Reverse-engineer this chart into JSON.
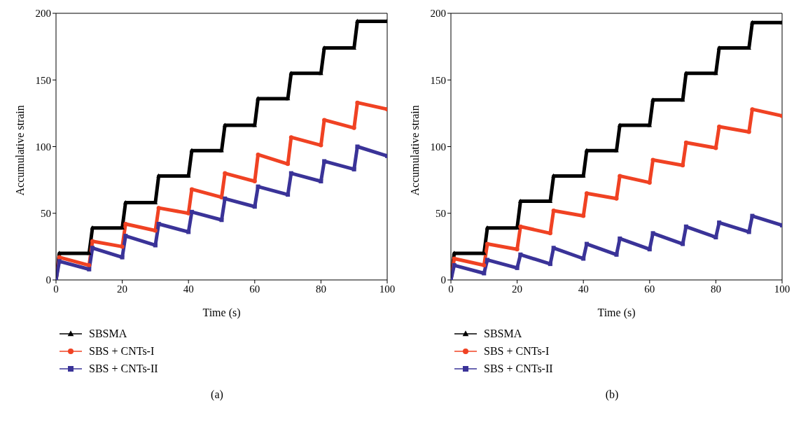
{
  "chart_data": [
    {
      "type": "line",
      "xlabel": "Time (s)",
      "ylabel": "Accumulative strain",
      "xlim": [
        0,
        100
      ],
      "xticks": [
        0,
        20,
        40,
        60,
        80,
        100
      ],
      "ylim": [
        0,
        200
      ],
      "yticks": [
        0,
        50,
        100,
        150,
        200
      ],
      "grid": false,
      "legend": "bottom",
      "line_style": "solid",
      "annotations": [
        "(a)"
      ],
      "series": [
        {
          "name": "SBSMA",
          "color": "#000000",
          "marker": "triangle",
          "x": [
            0,
            1,
            10,
            11,
            20,
            21,
            30,
            31,
            40,
            41,
            50,
            51,
            60,
            61,
            70,
            71,
            80,
            81,
            90,
            91,
            100
          ],
          "values": [
            0,
            20,
            20,
            39,
            39,
            58,
            58,
            78,
            78,
            97,
            97,
            116,
            116,
            136,
            136,
            155,
            155,
            174,
            174,
            194,
            194
          ]
        },
        {
          "name": "SBS + CNTs-I",
          "color": "#f04223",
          "marker": "circle",
          "x": [
            0,
            1,
            10,
            11,
            20,
            21,
            30,
            31,
            40,
            41,
            50,
            51,
            60,
            61,
            70,
            71,
            80,
            81,
            90,
            91,
            100
          ],
          "values": [
            0,
            17,
            11,
            29,
            25,
            42,
            37,
            54,
            50,
            68,
            62,
            80,
            74,
            94,
            87,
            107,
            101,
            120,
            114,
            133,
            128
          ]
        },
        {
          "name": "SBS + CNTs-II",
          "color": "#3a3398",
          "marker": "square",
          "x": [
            0,
            1,
            10,
            11,
            20,
            21,
            30,
            31,
            40,
            41,
            50,
            51,
            60,
            61,
            70,
            71,
            80,
            81,
            90,
            91,
            100
          ],
          "values": [
            0,
            14,
            8,
            24,
            17,
            33,
            26,
            42,
            36,
            51,
            45,
            61,
            55,
            70,
            64,
            80,
            74,
            89,
            83,
            100,
            93
          ]
        }
      ]
    },
    {
      "type": "line",
      "xlabel": "Time (s)",
      "ylabel": "Accumulative strain",
      "xlim": [
        0,
        100
      ],
      "xticks": [
        0,
        20,
        40,
        60,
        80,
        100
      ],
      "ylim": [
        0,
        200
      ],
      "yticks": [
        0,
        50,
        100,
        150,
        200
      ],
      "grid": false,
      "legend": "bottom",
      "line_style": "solid",
      "annotations": [
        "(b)"
      ],
      "series": [
        {
          "name": "SBSMA",
          "color": "#000000",
          "marker": "triangle",
          "x": [
            0,
            1,
            10,
            11,
            20,
            21,
            30,
            31,
            40,
            41,
            50,
            51,
            60,
            61,
            70,
            71,
            80,
            81,
            90,
            91,
            100
          ],
          "values": [
            0,
            20,
            20,
            39,
            39,
            59,
            59,
            78,
            78,
            97,
            97,
            116,
            116,
            135,
            135,
            155,
            155,
            174,
            174,
            193,
            193
          ]
        },
        {
          "name": "SBS + CNTs-I",
          "color": "#f04223",
          "marker": "circle",
          "x": [
            0,
            1,
            10,
            11,
            20,
            21,
            30,
            31,
            40,
            41,
            50,
            51,
            60,
            61,
            70,
            71,
            80,
            81,
            90,
            91,
            100
          ],
          "values": [
            0,
            16,
            11,
            27,
            23,
            40,
            35,
            52,
            48,
            65,
            61,
            78,
            73,
            90,
            86,
            103,
            99,
            115,
            111,
            128,
            123
          ]
        },
        {
          "name": "SBS + CNTs-II",
          "color": "#3a3398",
          "marker": "square",
          "x": [
            0,
            1,
            10,
            11,
            20,
            21,
            30,
            31,
            40,
            41,
            50,
            51,
            60,
            61,
            70,
            71,
            80,
            81,
            90,
            91,
            100
          ],
          "values": [
            0,
            11,
            5,
            15,
            9,
            19,
            12,
            24,
            16,
            27,
            19,
            31,
            23,
            35,
            27,
            40,
            32,
            43,
            36,
            48,
            41
          ]
        }
      ]
    }
  ]
}
